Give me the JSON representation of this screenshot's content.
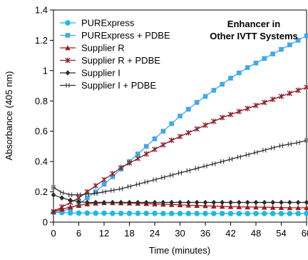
{
  "chart_data": {
    "type": "line",
    "title": "",
    "annotation": [
      "Enhancer in",
      "Other IVTT Systems"
    ],
    "xlabel": "Time (minutes)",
    "ylabel": "Absorbance (405 nm)",
    "xlim": [
      0,
      60
    ],
    "ylim": [
      0,
      1.4
    ],
    "x_ticks": [
      "0",
      "6",
      "12",
      "18",
      "24",
      "30",
      "36",
      "42",
      "48",
      "54",
      "60"
    ],
    "y_ticks": [
      "0",
      "0.2",
      "0.4",
      "0.6",
      "0.8",
      "1",
      "1.2",
      "1.4"
    ],
    "grid": false,
    "legend_position": "top-left",
    "x": [
      0,
      2,
      4,
      6,
      8,
      10,
      12,
      14,
      16,
      18,
      20,
      22,
      24,
      26,
      28,
      30,
      32,
      34,
      36,
      38,
      40,
      42,
      44,
      46,
      48,
      50,
      52,
      54,
      56,
      58,
      60
    ],
    "series": [
      {
        "name": "PURExpress",
        "color": "#1fb8e6",
        "marker": "circle",
        "values": [
          0.065,
          0.063,
          0.061,
          0.06,
          0.06,
          0.059,
          0.059,
          0.058,
          0.058,
          0.058,
          0.058,
          0.058,
          0.058,
          0.057,
          0.057,
          0.057,
          0.057,
          0.057,
          0.057,
          0.057,
          0.057,
          0.057,
          0.057,
          0.057,
          0.057,
          0.057,
          0.057,
          0.057,
          0.057,
          0.057,
          0.057
        ]
      },
      {
        "name": "PURExpress + PDBE",
        "color": "#3fa9e8",
        "marker": "square",
        "values": [
          0.065,
          0.07,
          0.09,
          0.12,
          0.16,
          0.2,
          0.25,
          0.3,
          0.35,
          0.4,
          0.45,
          0.5,
          0.55,
          0.6,
          0.65,
          0.7,
          0.745,
          0.79,
          0.83,
          0.87,
          0.91,
          0.95,
          0.985,
          1.02,
          1.05,
          1.08,
          1.11,
          1.14,
          1.17,
          1.2,
          1.23
        ]
      },
      {
        "name": "Supplier R",
        "color": "#9e1b1b",
        "marker": "triangle",
        "values": [
          0.07,
          0.085,
          0.1,
          0.11,
          0.12,
          0.125,
          0.128,
          0.128,
          0.127,
          0.126,
          0.124,
          0.122,
          0.12,
          0.118,
          0.116,
          0.114,
          0.112,
          0.11,
          0.108,
          0.106,
          0.104,
          0.102,
          0.101,
          0.1,
          0.099,
          0.098,
          0.097,
          0.096,
          0.095,
          0.095,
          0.095
        ]
      },
      {
        "name": "Supplier R + PDBE",
        "color": "#8a1f2b",
        "marker": "star",
        "values": [
          0.07,
          0.1,
          0.13,
          0.16,
          0.2,
          0.24,
          0.28,
          0.32,
          0.36,
          0.39,
          0.42,
          0.45,
          0.48,
          0.51,
          0.54,
          0.565,
          0.59,
          0.615,
          0.64,
          0.665,
          0.69,
          0.71,
          0.73,
          0.75,
          0.77,
          0.79,
          0.81,
          0.83,
          0.85,
          0.87,
          0.89
        ]
      },
      {
        "name": "Supplier I",
        "color": "#2b2b2b",
        "marker": "diamond",
        "values": [
          0.18,
          0.16,
          0.145,
          0.135,
          0.13,
          0.13,
          0.13,
          0.13,
          0.13,
          0.13,
          0.13,
          0.13,
          0.13,
          0.13,
          0.13,
          0.13,
          0.13,
          0.13,
          0.13,
          0.13,
          0.13,
          0.13,
          0.13,
          0.13,
          0.13,
          0.13,
          0.13,
          0.13,
          0.13,
          0.13,
          0.13
        ]
      },
      {
        "name": "Supplier I + PDBE",
        "color": "#2b2b2b",
        "marker": "cross",
        "values": [
          0.23,
          0.195,
          0.18,
          0.18,
          0.185,
          0.19,
          0.2,
          0.21,
          0.22,
          0.235,
          0.25,
          0.265,
          0.28,
          0.295,
          0.31,
          0.325,
          0.34,
          0.355,
          0.37,
          0.385,
          0.4,
          0.415,
          0.43,
          0.445,
          0.46,
          0.475,
          0.49,
          0.505,
          0.515,
          0.525,
          0.54
        ]
      }
    ]
  }
}
